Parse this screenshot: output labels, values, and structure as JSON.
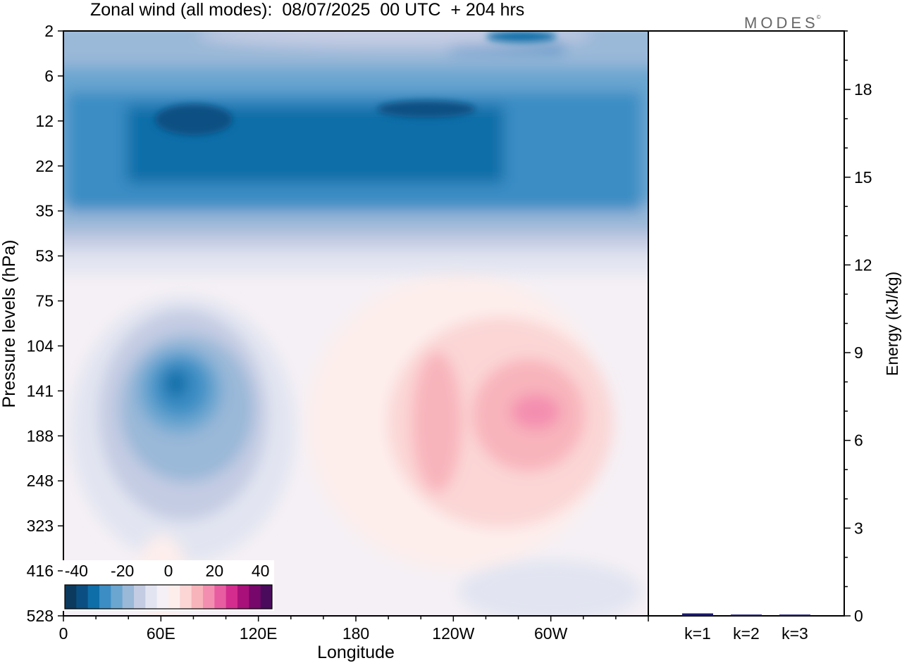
{
  "title": "Zonal wind (all modes):  08/07/2025  00 UTC  + 204 hrs",
  "logo": "MODES",
  "logo_mark": "©",
  "chart_data": [
    {
      "type": "heatmap",
      "title": "Zonal wind (all modes):  08/07/2025  00 UTC  + 204 hrs",
      "xlabel": "Longitude",
      "ylabel": "Pressure levels (hPa)",
      "x_ticks": [
        "0",
        "60E",
        "120E",
        "180",
        "120W",
        "60W"
      ],
      "x_tick_lon": [
        0,
        60,
        120,
        180,
        240,
        300
      ],
      "xlim": [
        0,
        360
      ],
      "y_ticks": [
        2,
        6,
        12,
        22,
        35,
        53,
        75,
        104,
        141,
        188,
        248,
        323,
        416,
        528
      ],
      "y_reversed": true,
      "colorbar": {
        "labels": [
          "-40",
          "-20",
          "0",
          "20",
          "40"
        ],
        "range": [
          -45,
          45
        ],
        "step": 5,
        "colors": [
          "#0b3a5e",
          "#0b4f82",
          "#0e6ea8",
          "#3b8dc4",
          "#6aa6d0",
          "#9ab8d8",
          "#c4cce3",
          "#e2e5f1",
          "#f5f0f5",
          "#fdeeec",
          "#fbd6d5",
          "#f8b4bb",
          "#f48eb0",
          "#e85da2",
          "#d42c8e",
          "#a9107a",
          "#77076a",
          "#4a0b5c"
        ]
      },
      "features": [
        {
          "label": "stratospheric easterly jet",
          "lon_range": [
            0,
            360
          ],
          "pressure_range": [
            6,
            40
          ],
          "value_min": -35
        },
        {
          "label": "upper tropospheric easterly core",
          "lon_center": 70,
          "pressure_center": 141,
          "value_min": -30
        },
        {
          "label": "westerly core",
          "lon_center": 230,
          "pressure_center": 150,
          "value_max": 20
        },
        {
          "label": "westerly core",
          "lon_center": 280,
          "pressure_center": 160,
          "value_max": 20
        }
      ]
    },
    {
      "type": "bar",
      "ylabel": "Energy (kJ/kg)",
      "categories": [
        "k=1",
        "k=2",
        "k=3"
      ],
      "values": [
        0.06,
        0.02,
        0.02
      ],
      "ylim": [
        0,
        20
      ],
      "y_ticks": [
        0,
        3,
        6,
        9,
        12,
        15,
        18
      ],
      "colors": [
        "#1a1a6e",
        "#1a1a6e",
        "#1a1a6e"
      ]
    }
  ]
}
